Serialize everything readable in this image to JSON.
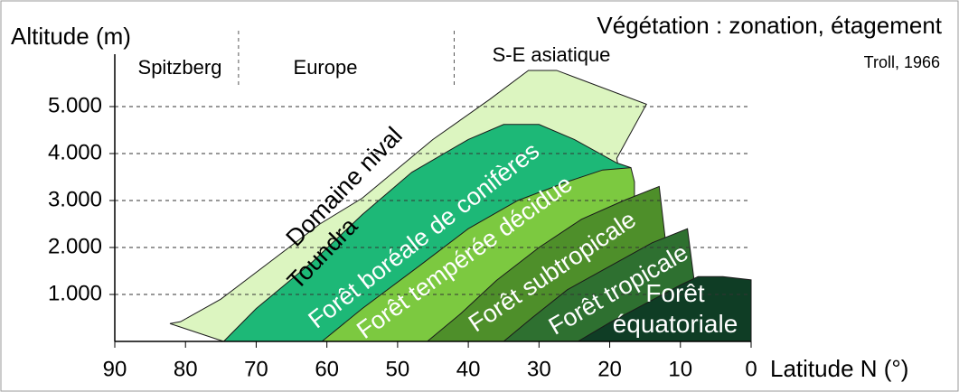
{
  "chart_data": {
    "type": "area",
    "title": "Végétation : zonation, étagement",
    "source": "Troll, 1966",
    "y_label": "Altitude (m)",
    "x_label": "Latitude N (°)",
    "annotation": "Domaine nival",
    "regions": [
      "Spitzberg",
      "Europe",
      "S-E asiatique"
    ],
    "dividers": [
      72.5,
      42
    ],
    "xlim": [
      90,
      0
    ],
    "ylim": [
      0,
      6000
    ],
    "xticks": [
      90,
      80,
      70,
      60,
      50,
      40,
      30,
      20,
      10,
      0
    ],
    "yticks": [
      {
        "value": 1000,
        "label": "1.000"
      },
      {
        "value": 2000,
        "label": "2.000"
      },
      {
        "value": 3000,
        "label": "3.000"
      },
      {
        "value": 4000,
        "label": "4.000"
      },
      {
        "value": 5000,
        "label": "5.000"
      }
    ],
    "grid": true,
    "series": [
      {
        "name": "Toundra",
        "color": "#dcf5c0",
        "x": [
          74.6,
          82.2,
          80.7,
          75,
          68,
          61,
          55,
          45,
          37,
          31.5,
          27.5,
          14.8,
          19,
          14.8
        ],
        "y": [
          0,
          380,
          420,
          900,
          1700,
          2500,
          3050,
          4300,
          5150,
          5770,
          5770,
          5050,
          3900,
          0
        ]
      },
      {
        "name": "Forêt boréale de conifères",
        "color": "#1db877",
        "x": [
          74.6,
          70,
          62,
          55,
          48,
          40,
          35,
          30,
          25,
          19,
          17,
          17
        ],
        "y": [
          0,
          700,
          1700,
          2700,
          3600,
          4300,
          4620,
          4620,
          4300,
          3800,
          3700,
          0
        ]
      },
      {
        "name": "Forêt tempérée décidue",
        "color": "#7cc940",
        "x": [
          60.7,
          55,
          47,
          40,
          33,
          26,
          21,
          17,
          16.5,
          16.5
        ],
        "y": [
          0,
          700,
          1600,
          2400,
          3000,
          3400,
          3650,
          3700,
          3400,
          0
        ]
      },
      {
        "name": "Forêt subtropicale",
        "color": "#4e8f2a",
        "x": [
          45.8,
          41,
          36,
          30,
          24,
          18,
          13,
          12,
          11.6
        ],
        "y": [
          0,
          600,
          1300,
          2000,
          2600,
          3000,
          3300,
          2000,
          0
        ]
      },
      {
        "name": "Forêt tropicale",
        "color": "#2e7030",
        "x": [
          35,
          31,
          26,
          20,
          14,
          9,
          7.8,
          7.8
        ],
        "y": [
          0,
          500,
          1100,
          1600,
          2100,
          2400,
          1000,
          0
        ]
      },
      {
        "name": "Forêt équatoriale",
        "color": "#0f3d25",
        "x": [
          24.5,
          20,
          15,
          10,
          7.5,
          4,
          0,
          0
        ],
        "y": [
          0,
          400,
          800,
          1200,
          1380,
          1380,
          1310,
          0
        ]
      }
    ]
  }
}
